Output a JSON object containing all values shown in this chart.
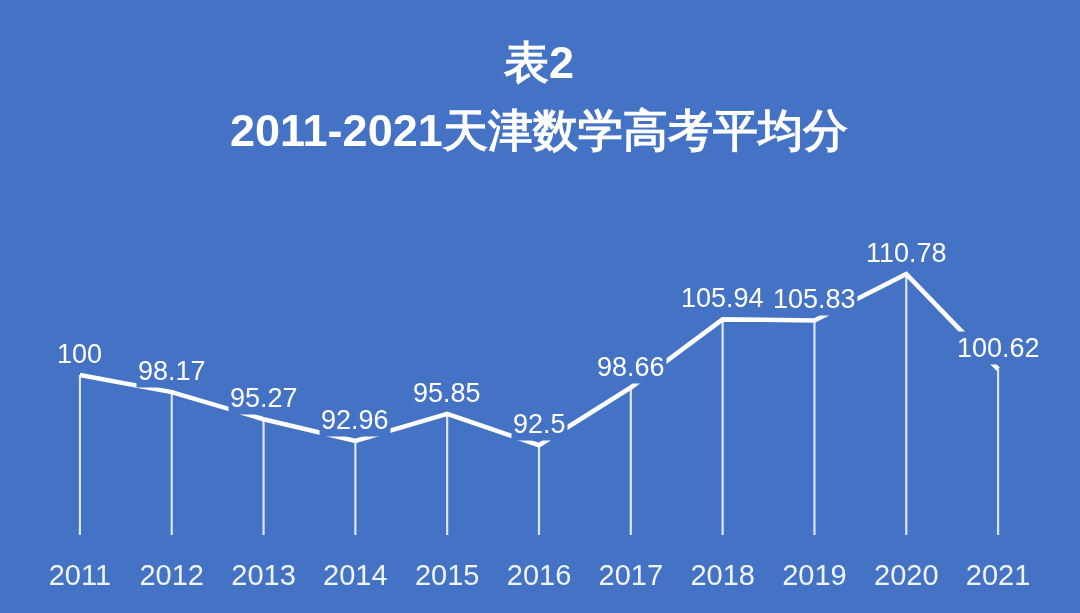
{
  "chart_data": {
    "type": "line",
    "title": "表2",
    "subtitle": "2011-2021天津数学高考平均分",
    "categories": [
      "2011",
      "2012",
      "2013",
      "2014",
      "2015",
      "2016",
      "2017",
      "2018",
      "2019",
      "2020",
      "2021"
    ],
    "series": [
      {
        "type": "bar",
        "color": "#dce5f5",
        "values": [
          100,
          98.17,
          95.27,
          92.96,
          95.85,
          92.5,
          98.66,
          105.94,
          105.83,
          110.78,
          100.62
        ]
      },
      {
        "color": "#ffffff",
        "values": [
          100,
          98.17,
          95.27,
          92.96,
          95.85,
          92.5,
          98.66,
          105.94,
          105.83,
          110.78,
          100.62
        ],
        "value_labels": [
          "100",
          "98.17",
          "95.27",
          "92.96",
          "95.85",
          "92.5",
          "98.66",
          "105.94",
          "105.83",
          "110.78",
          "100.62"
        ]
      }
    ],
    "marker": "none",
    "line_style": "solid"
  }
}
